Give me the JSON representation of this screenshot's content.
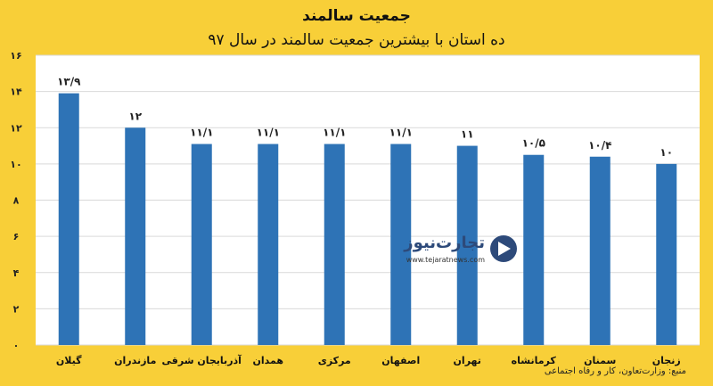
{
  "chart_data": {
    "type": "bar",
    "title": "جمعیت سالمند",
    "subtitle": "ده استان با بیشترین جمعیت سالمند در سال ۹۷",
    "categories": [
      "گیلان",
      "مازندران",
      "آذربایجان شرقی",
      "همدان",
      "مرکزی",
      "اصفهان",
      "تهران",
      "کرمانشاه",
      "سمنان",
      "زنجان"
    ],
    "values": [
      13.9,
      12,
      11.1,
      11.1,
      11.1,
      11.1,
      11,
      10.5,
      10.4,
      10
    ],
    "value_labels": [
      "۱۳/۹",
      "۱۲",
      "۱۱/۱",
      "۱۱/۱",
      "۱۱/۱",
      "۱۱/۱",
      "۱۱",
      "۱۰/۵",
      "۱۰/۴",
      "۱۰"
    ],
    "yticks": [
      0,
      2,
      4,
      6,
      8,
      10,
      12,
      14,
      16
    ],
    "ytick_labels": [
      "۰",
      "۲",
      "۴",
      "۶",
      "۸",
      "۱۰",
      "۱۲",
      "۱۴",
      "۱۶"
    ],
    "ylim": [
      0,
      16
    ],
    "grid": true,
    "bar_color": "#2e73b6"
  },
  "source": "منبع: وزارت‌تعاون، کار و رفاه اجتماعی",
  "watermark": {
    "brand": "تجارت‌نیوز",
    "url": "www.tejaratnews.com"
  },
  "colors": {
    "background": "#f8cf38",
    "plot_area": "#ffffff",
    "bar": "#2e73b6"
  }
}
